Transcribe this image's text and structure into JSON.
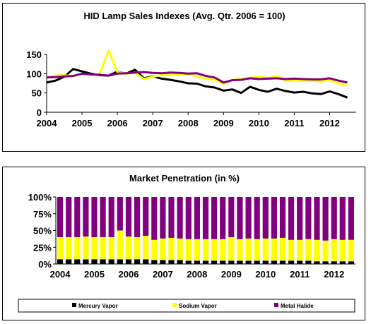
{
  "chart_data": [
    {
      "type": "line",
      "title": "HID Lamp Sales Indexes (Avg. Qtr. 2006 = 100)",
      "xlabel": "",
      "ylabel": "",
      "xlim": [
        2004,
        2012.75
      ],
      "ylim": [
        0,
        150
      ],
      "y_ticks": [
        0,
        50,
        100,
        150
      ],
      "x_ticks": [
        2004,
        2005,
        2006,
        2007,
        2008,
        2009,
        2010,
        2011,
        2012
      ],
      "grid": false,
      "legend": "none",
      "x": [
        2004.0,
        2004.25,
        2004.5,
        2004.75,
        2005.0,
        2005.25,
        2005.5,
        2005.75,
        2006.0,
        2006.25,
        2006.5,
        2006.75,
        2007.0,
        2007.25,
        2007.5,
        2007.75,
        2008.0,
        2008.25,
        2008.5,
        2008.75,
        2009.0,
        2009.25,
        2009.5,
        2009.75,
        2010.0,
        2010.25,
        2010.5,
        2010.75,
        2011.0,
        2011.25,
        2011.5,
        2011.75,
        2012.0,
        2012.25,
        2012.5
      ],
      "series": [
        {
          "color": "#000000",
          "values": [
            77,
            82,
            92,
            112,
            106,
            100,
            96,
            95,
            105,
            100,
            110,
            88,
            93,
            87,
            84,
            80,
            75,
            74,
            67,
            64,
            56,
            59,
            50,
            66,
            58,
            53,
            61,
            55,
            51,
            53,
            49,
            47,
            54,
            47,
            38
          ]
        },
        {
          "color": "#ffff00",
          "values": [
            90,
            95,
            96,
            93,
            100,
            96,
            100,
            160,
            104,
            100,
            102,
            86,
            92,
            96,
            97,
            96,
            98,
            94,
            86,
            85,
            73,
            84,
            86,
            89,
            92,
            88,
            95,
            82,
            82,
            81,
            82,
            79,
            84,
            75,
            70
          ]
        },
        {
          "color": "#800080",
          "values": [
            90,
            91,
            93,
            94,
            100,
            98,
            97,
            95,
            100,
            101,
            103,
            104,
            102,
            101,
            103,
            102,
            100,
            101,
            94,
            90,
            77,
            83,
            84,
            88,
            86,
            87,
            88,
            86,
            87,
            86,
            85,
            85,
            88,
            82,
            77
          ]
        }
      ]
    },
    {
      "type": "bar",
      "stacked": true,
      "title": "Market Penetration (in %)",
      "xlabel": "",
      "ylabel": "",
      "ylim": [
        0,
        100
      ],
      "y_ticks": [
        "0%",
        "25%",
        "50%",
        "75%",
        "100%"
      ],
      "x_ticks": [
        2004,
        2005,
        2006,
        2007,
        2008,
        2009,
        2010,
        2011,
        2012
      ],
      "x": [
        2004.0,
        2004.25,
        2004.5,
        2004.75,
        2005.0,
        2005.25,
        2005.5,
        2005.75,
        2006.0,
        2006.25,
        2006.5,
        2006.75,
        2007.0,
        2007.25,
        2007.5,
        2007.75,
        2008.0,
        2008.25,
        2008.5,
        2008.75,
        2009.0,
        2009.25,
        2009.5,
        2009.75,
        2010.0,
        2010.25,
        2010.5,
        2010.75,
        2011.0,
        2011.25,
        2011.5,
        2011.75,
        2012.0,
        2012.25,
        2012.5
      ],
      "legend": "bottom",
      "series": [
        {
          "name": "Mercury Vapor",
          "color": "#000000",
          "values": [
            7,
            7,
            7,
            7,
            7,
            7,
            7,
            7,
            7,
            7,
            7,
            6,
            6,
            6,
            6,
            5,
            5,
            5,
            5,
            5,
            5,
            5,
            5,
            5,
            5,
            5,
            5,
            5,
            5,
            5,
            4,
            4,
            4,
            4,
            4
          ]
        },
        {
          "name": "Sodium Vapor",
          "color": "#ffff00",
          "values": [
            33,
            33,
            33,
            34,
            33,
            33,
            33,
            43,
            34,
            33,
            35,
            30,
            32,
            33,
            32,
            32,
            32,
            32,
            32,
            32,
            35,
            32,
            33,
            32,
            33,
            33,
            34,
            31,
            31,
            32,
            32,
            31,
            33,
            32,
            32
          ]
        },
        {
          "name": "Metal Halide",
          "color": "#800080",
          "values": [
            60,
            60,
            60,
            59,
            60,
            60,
            60,
            50,
            59,
            60,
            58,
            64,
            62,
            61,
            62,
            63,
            63,
            63,
            63,
            63,
            60,
            63,
            62,
            63,
            62,
            62,
            61,
            64,
            64,
            63,
            64,
            65,
            63,
            64,
            64
          ]
        }
      ]
    }
  ]
}
